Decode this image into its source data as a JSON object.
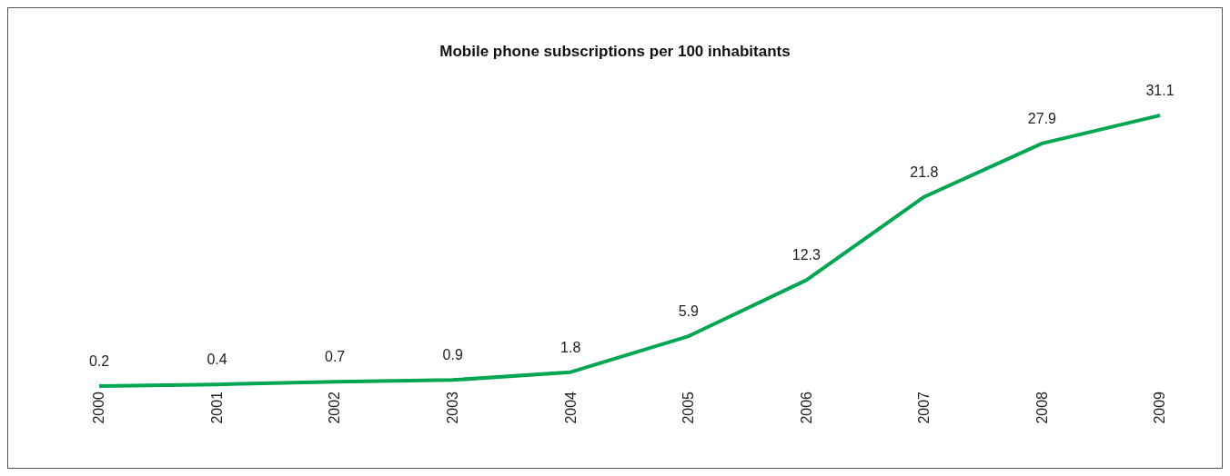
{
  "chart_data": {
    "type": "line",
    "title": "Mobile phone subscriptions per 100 inhabitants",
    "categories": [
      "2000",
      "2001",
      "2002",
      "2003",
      "2004",
      "2005",
      "2006",
      "2007",
      "2008",
      "2009"
    ],
    "series": [
      {
        "color": "#00a651",
        "values": [
          0.2,
          0.4,
          0.7,
          0.9,
          1.8,
          5.9,
          12.3,
          21.8,
          27.9,
          31.1
        ]
      }
    ],
    "data_labels": true,
    "marker": "none",
    "grid": false,
    "legend": false
  }
}
